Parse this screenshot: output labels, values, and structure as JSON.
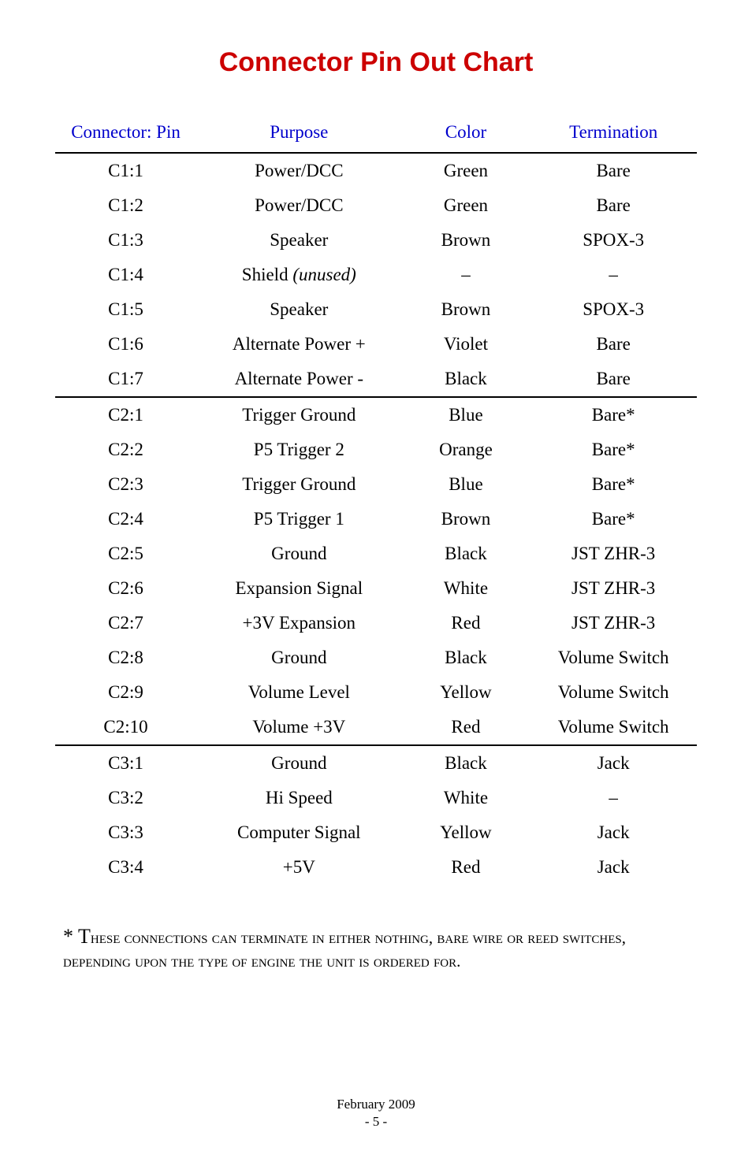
{
  "title": "Connector Pin Out Chart",
  "headers": {
    "connector": "Connector: Pin",
    "purpose": "Purpose",
    "color": "Color",
    "termination": "Termination"
  },
  "rows": [
    {
      "pin": "C1:1",
      "purpose": "Power/DCC",
      "color": "Green",
      "term": "Bare"
    },
    {
      "pin": "C1:2",
      "purpose": "Power/DCC",
      "color": "Green",
      "term": "Bare"
    },
    {
      "pin": "C1:3",
      "purpose": "Speaker",
      "color": "Brown",
      "term": "SPOX-3"
    },
    {
      "pin": "C1:4",
      "purpose_pre": "Shield ",
      "purpose_it": "(unused)",
      "color": "–",
      "term": "–"
    },
    {
      "pin": "C1:5",
      "purpose": "Speaker",
      "color": "Brown",
      "term": "SPOX-3"
    },
    {
      "pin": "C1:6",
      "purpose": "Alternate Power +",
      "color": "Violet",
      "term": "Bare"
    },
    {
      "pin": "C1:7",
      "purpose": "Alternate Power -",
      "color": "Black",
      "term": "Bare"
    },
    {
      "pin": "C2:1",
      "purpose": "Trigger Ground",
      "color": "Blue",
      "term": "Bare*"
    },
    {
      "pin": "C2:2",
      "purpose": "P5 Trigger 2",
      "color": "Orange",
      "term": "Bare*"
    },
    {
      "pin": "C2:3",
      "purpose": "Trigger Ground",
      "color": "Blue",
      "term": "Bare*"
    },
    {
      "pin": "C2:4",
      "purpose": "P5 Trigger 1",
      "color": "Brown",
      "term": "Bare*"
    },
    {
      "pin": "C2:5",
      "purpose": "Ground",
      "color": "Black",
      "term": "JST ZHR-3"
    },
    {
      "pin": "C2:6",
      "purpose": "Expansion Signal",
      "color": "White",
      "term": "JST ZHR-3"
    },
    {
      "pin": "C2:7",
      "purpose": "+3V Expansion",
      "color": "Red",
      "term": "JST ZHR-3"
    },
    {
      "pin": "C2:8",
      "purpose": "Ground",
      "color": "Black",
      "term": "Volume Switch"
    },
    {
      "pin": "C2:9",
      "purpose": "Volume Level",
      "color": "Yellow",
      "term": "Volume Switch"
    },
    {
      "pin": "C2:10",
      "purpose": "Volume +3V",
      "color": "Red",
      "term": "Volume Switch"
    },
    {
      "pin": "C3:1",
      "purpose": "Ground",
      "color": "Black",
      "term": "Jack"
    },
    {
      "pin": "C3:2",
      "purpose": "Hi Speed",
      "color": "White",
      "term": "–"
    },
    {
      "pin": "C3:3",
      "purpose": "Computer Signal",
      "color": "Yellow",
      "term": "Jack"
    },
    {
      "pin": "C3:4",
      "purpose": "+5V",
      "color": "Red",
      "term": "Jack"
    }
  ],
  "footnote_first": "* T",
  "footnote_rest": "hese connections can terminate in either nothing, bare wire or reed switches, depending upon the type of engine the unit is ordered for.",
  "footer_date": "February 2009",
  "footer_page": "- 5 -"
}
